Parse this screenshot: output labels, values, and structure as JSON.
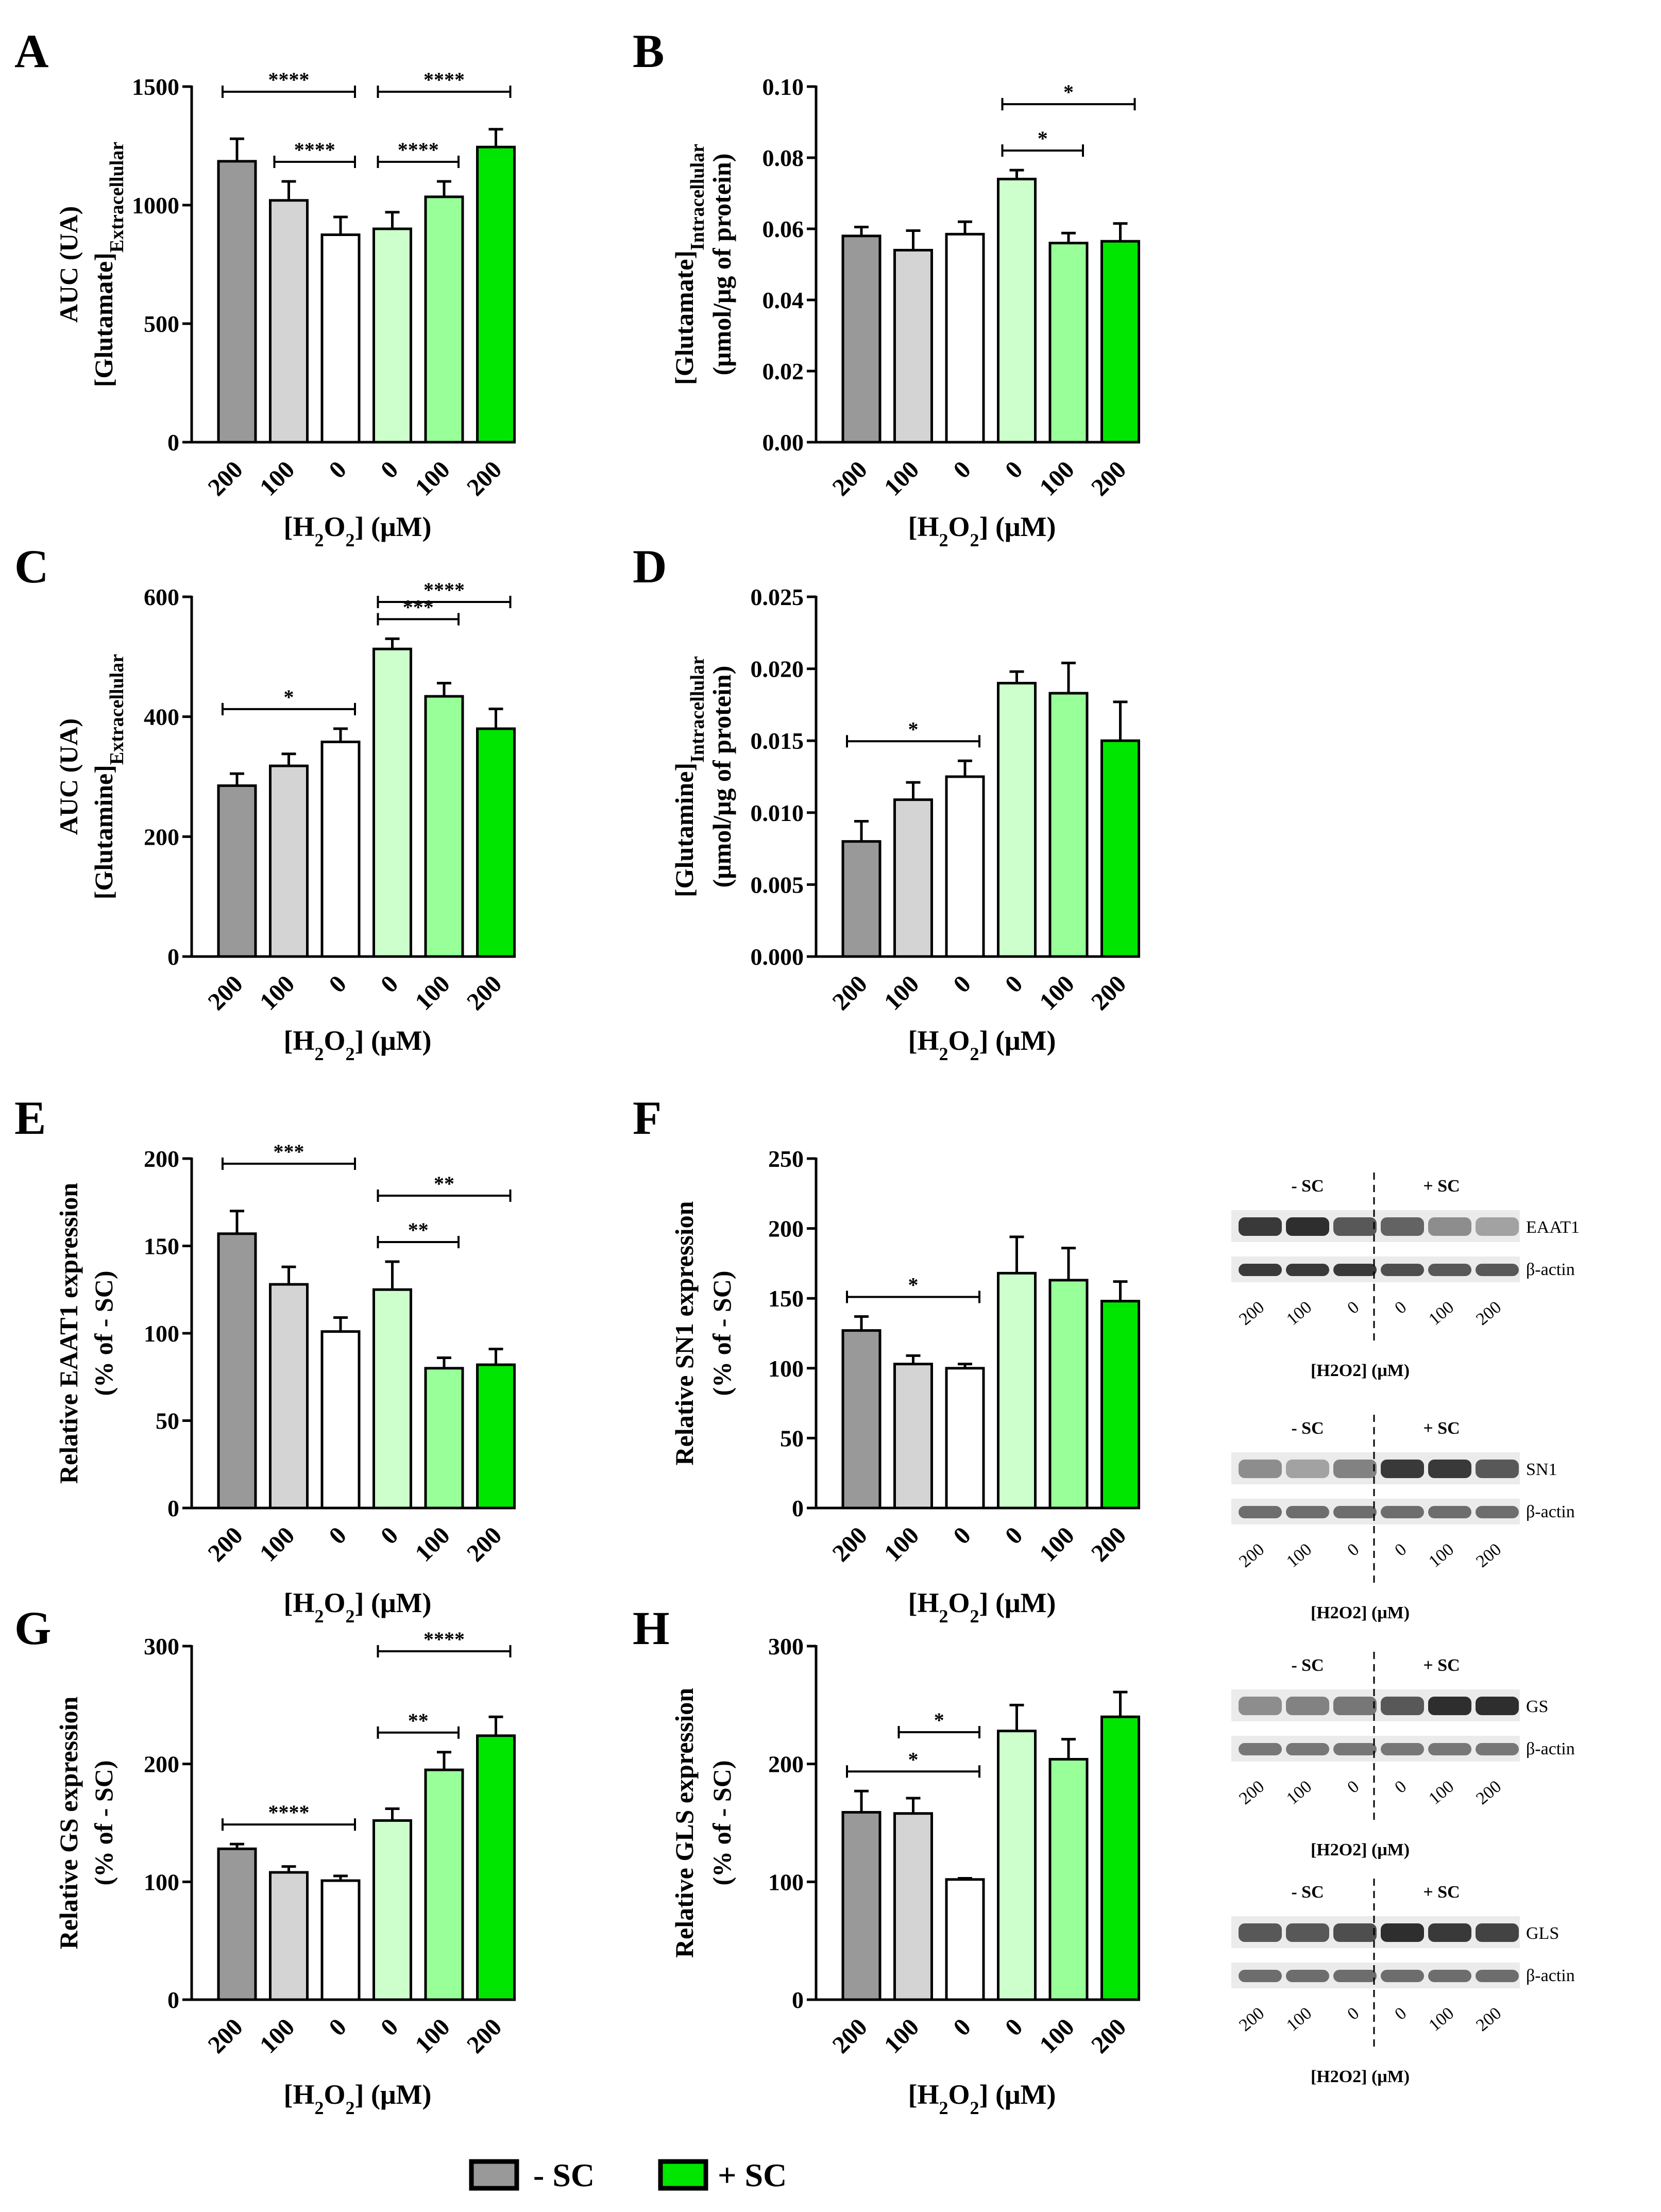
{
  "colors": {
    "g200": "#999999",
    "g100": "#d4d4d4",
    "g0": "#ffffff",
    "s0": "#ccffcc",
    "s100": "#99ff99",
    "s200": "#00e600"
  },
  "legend": {
    "neg": "- SC",
    "pos": "+ SC"
  },
  "chart_data": [
    {
      "panel": "A",
      "type": "bar",
      "categories": [
        "200",
        "100",
        "0",
        "0",
        "100",
        "200"
      ],
      "values": [
        1185,
        1020,
        875,
        900,
        1035,
        1245
      ],
      "errors": [
        95,
        80,
        75,
        70,
        65,
        75
      ],
      "ylim": [
        0,
        1500
      ],
      "yticks": [
        0,
        500,
        1000,
        1500
      ],
      "ylabel": [
        "AUC (UA)",
        "[Glutamate]",
        "Extracellular"
      ],
      "xlabel": [
        "[H",
        "2",
        "O",
        "2",
        "] (μM)"
      ],
      "sig": [
        {
          "from": 0,
          "to": 2,
          "label": "****",
          "level": 1
        },
        {
          "from": 1,
          "to": 2,
          "label": "****",
          "level": 0
        },
        {
          "from": 3,
          "to": 5,
          "label": "****",
          "level": 1
        },
        {
          "from": 3,
          "to": 4,
          "label": "****",
          "level": 0
        }
      ]
    },
    {
      "panel": "B",
      "type": "bar",
      "categories": [
        "200",
        "100",
        "0",
        "0",
        "100",
        "200"
      ],
      "values": [
        0.058,
        0.054,
        0.0585,
        0.074,
        0.056,
        0.0565
      ],
      "errors": [
        0.0025,
        0.0055,
        0.0035,
        0.0025,
        0.0028,
        0.005
      ],
      "ylim": [
        0,
        0.1
      ],
      "yticks": [
        "0.00",
        "0.02",
        "0.04",
        "0.06",
        "0.08",
        "0.10"
      ],
      "ylabel": [
        "[Glutamate]",
        "Intracellular",
        "(μmol/μg of protein)"
      ],
      "xlabel": [
        "[H",
        "2",
        "O",
        "2",
        "] (μM)"
      ],
      "sig": [
        {
          "from": 3,
          "to": 5,
          "label": "*",
          "level": 1
        },
        {
          "from": 3,
          "to": 4,
          "label": "*",
          "level": 0
        }
      ]
    },
    {
      "panel": "C",
      "type": "bar",
      "categories": [
        "200",
        "100",
        "0",
        "0",
        "100",
        "200"
      ],
      "values": [
        285,
        318,
        358,
        513,
        434,
        380
      ],
      "errors": [
        20,
        20,
        22,
        17,
        22,
        33
      ],
      "ylim": [
        0,
        600
      ],
      "yticks": [
        0,
        200,
        400,
        600
      ],
      "ylabel": [
        "AUC (UA)",
        "[Glutamine]",
        "Extracellular"
      ],
      "xlabel": [
        "[H",
        "2",
        "O",
        "2",
        "] (μM)"
      ],
      "sig": [
        {
          "from": 0,
          "to": 2,
          "label": "*",
          "level": 0
        },
        {
          "from": 3,
          "to": 5,
          "label": "****",
          "level": 1
        },
        {
          "from": 3,
          "to": 4,
          "label": "***",
          "level": 0
        }
      ]
    },
    {
      "panel": "D",
      "type": "bar",
      "categories": [
        "200",
        "100",
        "0",
        "0",
        "100",
        "200"
      ],
      "values": [
        0.008,
        0.0109,
        0.0125,
        0.019,
        0.0183,
        0.015
      ],
      "errors": [
        0.0014,
        0.0012,
        0.0011,
        0.0008,
        0.0021,
        0.0027
      ],
      "ylim": [
        0,
        0.025
      ],
      "yticks": [
        "0.000",
        "0.005",
        "0.010",
        "0.015",
        "0.020",
        "0.025"
      ],
      "ylabel": [
        "[Glutamine]",
        "Intracellular",
        "(μmol/μg of protein)"
      ],
      "xlabel": [
        "[H",
        "2",
        "O",
        "2",
        "] (μM)"
      ],
      "sig": [
        {
          "from": 0,
          "to": 2,
          "label": "*",
          "level": 0
        }
      ]
    },
    {
      "panel": "E",
      "type": "bar",
      "categories": [
        "200",
        "100",
        "0",
        "0",
        "100",
        "200"
      ],
      "values": [
        157,
        128,
        101,
        125,
        80,
        82
      ],
      "errors": [
        13,
        10,
        8,
        16,
        6,
        9
      ],
      "ylim": [
        0,
        200
      ],
      "yticks": [
        0,
        50,
        100,
        150,
        200
      ],
      "ylabel": [
        "Relative  EAAT1 expression",
        "(% of  - SC)"
      ],
      "xlabel": [
        "[H",
        "2",
        "O",
        "2",
        "] (μM)"
      ],
      "sig": [
        {
          "from": 0,
          "to": 2,
          "label": "***",
          "level": 1
        },
        {
          "from": 3,
          "to": 5,
          "label": "**",
          "level": 1
        },
        {
          "from": 3,
          "to": 4,
          "label": "**",
          "level": 0
        }
      ]
    },
    {
      "panel": "F",
      "type": "bar",
      "categories": [
        "200",
        "100",
        "0",
        "0",
        "100",
        "200"
      ],
      "values": [
        127,
        103,
        100,
        168,
        163,
        148
      ],
      "errors": [
        10,
        6,
        3,
        26,
        23,
        14
      ],
      "ylim": [
        0,
        250
      ],
      "yticks": [
        0,
        50,
        100,
        150,
        200,
        250
      ],
      "ylabel": [
        "Relative  SN1 expression",
        "(% of  - SC)"
      ],
      "xlabel": [
        "[H",
        "2",
        "O",
        "2",
        "] (μM)"
      ],
      "sig": [
        {
          "from": 0,
          "to": 2,
          "label": "*",
          "level": 0
        }
      ]
    },
    {
      "panel": "G",
      "type": "bar",
      "categories": [
        "200",
        "100",
        "0",
        "0",
        "100",
        "200"
      ],
      "values": [
        128,
        108,
        101,
        152,
        195,
        224
      ],
      "errors": [
        4,
        5,
        4,
        10,
        15,
        16
      ],
      "ylim": [
        0,
        300
      ],
      "yticks": [
        0,
        100,
        200,
        300
      ],
      "ylabel": [
        "Relative  GS expression",
        "(% of  - SC)"
      ],
      "xlabel": [
        "[H",
        "2",
        "O",
        "2",
        "] (μM)"
      ],
      "sig": [
        {
          "from": 0,
          "to": 2,
          "label": "****",
          "level": 0
        },
        {
          "from": 3,
          "to": 5,
          "label": "****",
          "level": 1
        },
        {
          "from": 3,
          "to": 4,
          "label": "**",
          "level": 0
        }
      ]
    },
    {
      "panel": "H",
      "type": "bar",
      "categories": [
        "200",
        "100",
        "0",
        "0",
        "100",
        "200"
      ],
      "values": [
        159,
        158,
        102,
        228,
        204,
        240
      ],
      "errors": [
        18,
        13,
        1,
        22,
        17,
        21
      ],
      "ylim": [
        0,
        300
      ],
      "yticks": [
        0,
        100,
        200,
        300
      ],
      "ylabel": [
        "Relative  GLS expression",
        "(% of  - SC)"
      ],
      "xlabel": [
        "[H",
        "2",
        "O",
        "2",
        "] (μM)"
      ],
      "sig": [
        {
          "from": 0,
          "to": 2,
          "label": "*",
          "level": 0
        },
        {
          "from": 1,
          "to": 2,
          "label": "*",
          "level": 1
        }
      ]
    }
  ],
  "blots": [
    {
      "name": "EAAT1",
      "neg": "- SC",
      "pos": "+ SC",
      "target": "EAAT1",
      "control": "β-actin",
      "lanes": [
        "200",
        "100",
        "0",
        "0",
        "100",
        "200"
      ],
      "xlabel": "[H2O2] (μM)",
      "target_intensity": [
        0.85,
        0.9,
        0.7,
        0.65,
        0.45,
        0.35
      ],
      "control_intensity": [
        0.85,
        0.85,
        0.85,
        0.75,
        0.7,
        0.7
      ]
    },
    {
      "name": "SN1",
      "neg": "- SC",
      "pos": "+ SC",
      "target": "SN1",
      "control": "β-actin",
      "lanes": [
        "200",
        "100",
        "0",
        "0",
        "100",
        "200"
      ],
      "xlabel": "[H2O2] (μM)",
      "target_intensity": [
        0.45,
        0.35,
        0.5,
        0.85,
        0.85,
        0.7
      ],
      "control_intensity": [
        0.6,
        0.6,
        0.6,
        0.6,
        0.6,
        0.6
      ]
    },
    {
      "name": "GS",
      "neg": "- SC",
      "pos": "+ SC",
      "target": "GS",
      "control": "β-actin",
      "lanes": [
        "200",
        "100",
        "0",
        "0",
        "100",
        "200"
      ],
      "xlabel": "[H2O2] (μM)",
      "target_intensity": [
        0.45,
        0.5,
        0.55,
        0.7,
        0.9,
        0.9
      ],
      "control_intensity": [
        0.55,
        0.55,
        0.55,
        0.55,
        0.55,
        0.55
      ]
    },
    {
      "name": "GLS",
      "neg": "- SC",
      "pos": "+ SC",
      "target": "GLS",
      "control": "β-actin",
      "lanes": [
        "200",
        "100",
        "0",
        "0",
        "100",
        "200"
      ],
      "xlabel": "[H2O2] (μM)",
      "target_intensity": [
        0.7,
        0.7,
        0.75,
        0.9,
        0.85,
        0.8
      ],
      "control_intensity": [
        0.6,
        0.6,
        0.6,
        0.6,
        0.6,
        0.6
      ]
    }
  ]
}
